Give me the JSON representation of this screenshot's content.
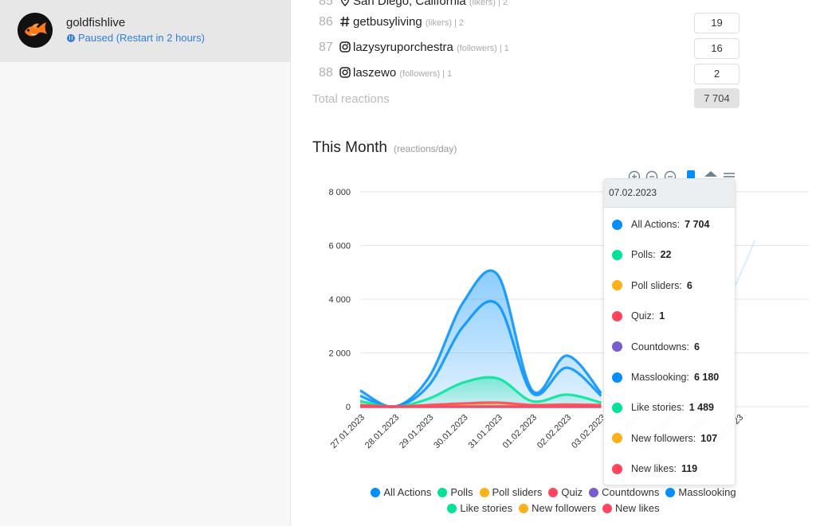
{
  "account": {
    "name": "goldfishlive",
    "status": "Paused (Restart in 2 hours)"
  },
  "leaderboard": {
    "rows": [
      {
        "rank": "86",
        "type": "hashtag",
        "name": "getbusyliving",
        "meta": "(likers) | 2",
        "value": "19"
      },
      {
        "rank": "87",
        "type": "instagram",
        "name": "lazysyruporchestra",
        "meta": "(followers) | 1",
        "value": "16"
      },
      {
        "rank": "88",
        "type": "instagram",
        "name": "laszewo",
        "meta": "(followers) | 1",
        "value": "2"
      }
    ],
    "partial_row": {
      "name": "San Diego, California",
      "meta": "(likers) | 2"
    },
    "total_label": "Total reactions",
    "total_value": "7 704"
  },
  "month": {
    "title": "This Month",
    "subtitle": "(reactions/day)"
  },
  "chart_data": {
    "type": "area",
    "categories": [
      "27.01.2023",
      "28.01.2023",
      "29.01.2023",
      "30.01.2023",
      "31.01.2023",
      "01.02.2023",
      "02.02.2023",
      "03.02.2023",
      "04.02.2023",
      "05.02.2023",
      "06.02.2023",
      "07.02.2023"
    ],
    "ylim": [
      0,
      8000
    ],
    "yticks": [
      "0",
      "2 000",
      "4 000",
      "6 000",
      "8 000"
    ],
    "series": [
      {
        "name": "All Actions",
        "color": "#008ffb",
        "values": [
          600,
          0,
          1100,
          3900,
          4900,
          600,
          1900,
          500,
          null,
          null,
          null,
          7704
        ]
      },
      {
        "name": "Polls",
        "color": "#00e396",
        "values": [
          0,
          0,
          0,
          0,
          0,
          0,
          0,
          0,
          null,
          null,
          null,
          22
        ]
      },
      {
        "name": "Poll sliders",
        "color": "#feb019",
        "values": [
          0,
          0,
          0,
          0,
          0,
          0,
          0,
          0,
          null,
          null,
          null,
          6
        ]
      },
      {
        "name": "Quiz",
        "color": "#ff4560",
        "values": [
          0,
          0,
          0,
          0,
          0,
          0,
          0,
          0,
          null,
          null,
          null,
          1
        ]
      },
      {
        "name": "Countdowns",
        "color": "#775dd0",
        "values": [
          0,
          0,
          0,
          0,
          0,
          0,
          0,
          0,
          null,
          null,
          null,
          6
        ]
      },
      {
        "name": "Masslooking",
        "color": "#008ffb",
        "values": [
          400,
          0,
          800,
          3000,
          3800,
          500,
          1450,
          400,
          null,
          null,
          null,
          6180
        ]
      },
      {
        "name": "Like stories",
        "color": "#00e396",
        "values": [
          200,
          0,
          300,
          900,
          1050,
          200,
          450,
          150,
          null,
          null,
          null,
          1489
        ]
      },
      {
        "name": "New followers",
        "color": "#feb019",
        "values": [
          50,
          0,
          50,
          100,
          120,
          50,
          60,
          50,
          null,
          null,
          null,
          107
        ]
      },
      {
        "name": "New likes",
        "color": "#ff4560",
        "values": [
          60,
          0,
          60,
          120,
          150,
          60,
          80,
          60,
          null,
          null,
          null,
          119
        ]
      }
    ]
  },
  "tooltip": {
    "date": "07.02.2023",
    "rows": [
      {
        "label": "All Actions:",
        "value": "7 704",
        "color": "#008ffb"
      },
      {
        "label": "Polls:",
        "value": "22",
        "color": "#00e396"
      },
      {
        "label": "Poll sliders:",
        "value": "6",
        "color": "#feb019"
      },
      {
        "label": "Quiz:",
        "value": "1",
        "color": "#ff4560"
      },
      {
        "label": "Countdowns:",
        "value": "6",
        "color": "#775dd0"
      },
      {
        "label": "Masslooking:",
        "value": "6 180",
        "color": "#008ffb"
      },
      {
        "label": "Like stories:",
        "value": "1 489",
        "color": "#00e396"
      },
      {
        "label": "New followers:",
        "value": "107",
        "color": "#feb019"
      },
      {
        "label": "New likes:",
        "value": "119",
        "color": "#ff4560"
      }
    ]
  },
  "toolbar": {
    "icons": [
      "zoom-in-icon",
      "zoom-out-icon",
      "magnifier-icon",
      "pan-hand-icon",
      "reset-home-icon",
      "menu-icon"
    ]
  }
}
